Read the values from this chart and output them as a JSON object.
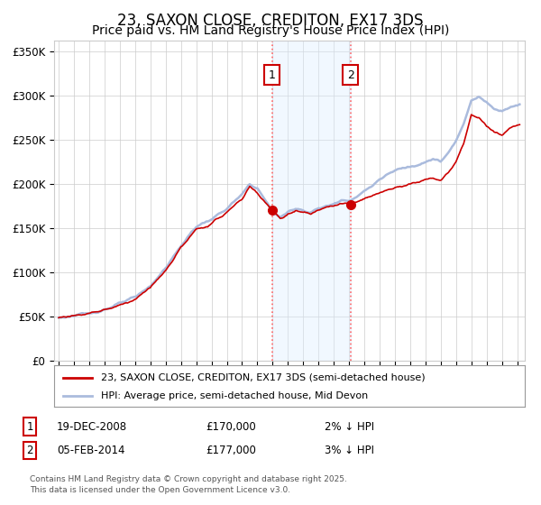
{
  "title": "23, SAXON CLOSE, CREDITON, EX17 3DS",
  "subtitle": "Price paid vs. HM Land Registry's House Price Index (HPI)",
  "ylabel_ticks": [
    "£0",
    "£50K",
    "£100K",
    "£150K",
    "£200K",
    "£250K",
    "£300K",
    "£350K"
  ],
  "ytick_vals": [
    0,
    50000,
    100000,
    150000,
    200000,
    250000,
    300000,
    350000
  ],
  "ylim": [
    0,
    362000
  ],
  "xlim_start": 1994.7,
  "xlim_end": 2025.5,
  "sale1_date": 2008.96,
  "sale1_price": 170000,
  "sale1_label": "1",
  "sale1_text": "19-DEC-2008",
  "sale1_pct": "2% ↓ HPI",
  "sale2_date": 2014.09,
  "sale2_price": 177000,
  "sale2_label": "2",
  "sale2_text": "05-FEB-2014",
  "sale2_pct": "3% ↓ HPI",
  "hpi_color": "#aabbdd",
  "price_color": "#cc0000",
  "shaded_color": "#ddeeff",
  "background_color": "#ffffff",
  "grid_color": "#cccccc",
  "legend_red_label": "23, SAXON CLOSE, CREDITON, EX17 3DS (semi-detached house)",
  "legend_blue_label": "HPI: Average price, semi-detached house, Mid Devon",
  "footer": "Contains HM Land Registry data © Crown copyright and database right 2025.\nThis data is licensed under the Open Government Licence v3.0.",
  "title_fontsize": 12,
  "subtitle_fontsize": 10
}
